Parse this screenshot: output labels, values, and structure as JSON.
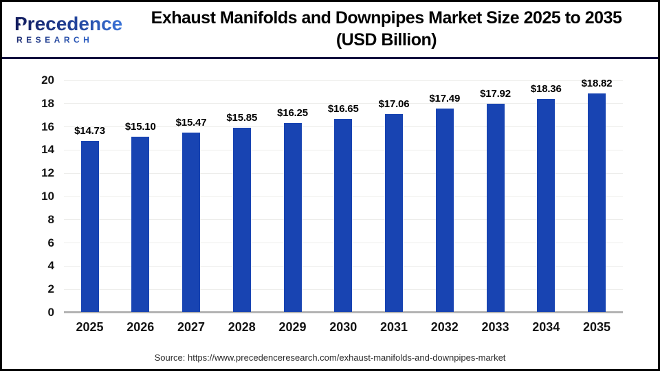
{
  "header": {
    "logo": {
      "line1": "Precedence",
      "line2": "RESEARCH"
    },
    "title_line1": "Exhaust Manifolds and Downpipes Market Size 2025 to 2035",
    "title_line2": "(USD Billion)"
  },
  "chart_data": {
    "type": "bar",
    "title": "Exhaust Manifolds and Downpipes Market Size 2025 to 2035 (USD Billion)",
    "categories": [
      "2025",
      "2026",
      "2027",
      "2028",
      "2029",
      "2030",
      "2031",
      "2032",
      "2033",
      "2034",
      "2035"
    ],
    "values": [
      14.73,
      15.1,
      15.47,
      15.85,
      16.25,
      16.65,
      17.06,
      17.49,
      17.92,
      18.36,
      18.82
    ],
    "value_labels": [
      "$14.73",
      "$15.10",
      "$15.47",
      "$15.85",
      "$16.25",
      "$16.65",
      "$17.06",
      "$17.49",
      "$17.92",
      "$18.36",
      "$18.82"
    ],
    "xlabel": "",
    "ylabel": "",
    "ylim": [
      0,
      20
    ],
    "yticks": [
      "0",
      "2",
      "4",
      "6",
      "8",
      "10",
      "12",
      "14",
      "16",
      "18",
      "20"
    ],
    "grid": true,
    "legend": "none",
    "bar_color": "#1844b2"
  },
  "footer": {
    "source": "Source: https://www.precedenceresearch.com/exhaust-manifolds-and-downpipes-market"
  }
}
